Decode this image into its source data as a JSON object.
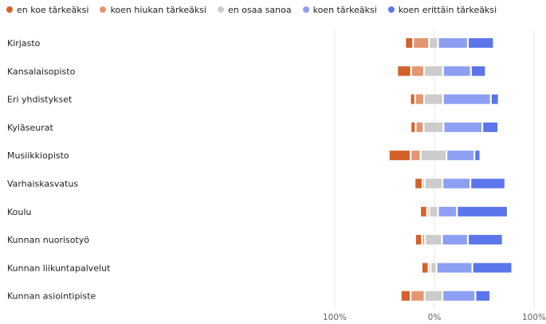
{
  "chart_data": {
    "type": "bar",
    "orientation": "horizontal",
    "stacking": "diverging",
    "xlim": [
      -100,
      100
    ],
    "x_ticks": [
      "100%",
      "0%",
      "100%"
    ],
    "legend_position": "top-left",
    "grid": true,
    "categories": [
      "Kirjasto",
      "Kansalaisopisto",
      "Eri yhdistykset",
      "Kyläseurat",
      "Musiikkiopisto",
      "Varhaiskasvatus",
      "Koulu",
      "Kunnan nuorisotyö",
      "Kunnan liikuntapalvelut",
      "Kunnan asiointipiste"
    ],
    "series": [
      {
        "name": "en koe tärkeäksi",
        "color": "#d4602a",
        "values": [
          8,
          14,
          5,
          5,
          22,
          8,
          7,
          7,
          7,
          10
        ]
      },
      {
        "name": "koen hiukan tärkeäksi",
        "color": "#e39670",
        "values": [
          16,
          13,
          9,
          8,
          10,
          2,
          2,
          3,
          2,
          14
        ]
      },
      {
        "name": "en osaa sanoa",
        "color": "#cccccc",
        "values": [
          9,
          19,
          19,
          20,
          26,
          18,
          9,
          17,
          6,
          18
        ]
      },
      {
        "name": "koen tärkeäksi",
        "color": "#8d9ff2",
        "values": [
          30,
          28,
          48,
          39,
          28,
          28,
          19,
          26,
          36,
          33
        ]
      },
      {
        "name": "koen erittäin tärkeäksi",
        "color": "#5b76ea",
        "values": [
          26,
          15,
          8,
          16,
          6,
          35,
          51,
          35,
          40,
          15
        ]
      }
    ]
  }
}
